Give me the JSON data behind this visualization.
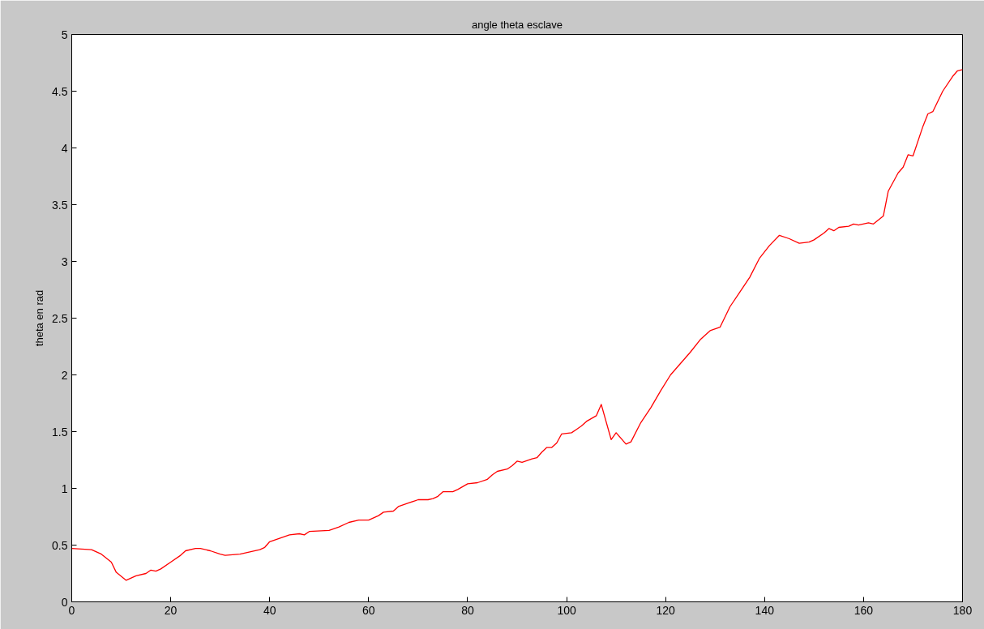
{
  "chart_data": {
    "type": "line",
    "title": "angle theta esclave",
    "ylabel": "theta en rad",
    "x": [
      0,
      4,
      6,
      8,
      9,
      11,
      13,
      15,
      16,
      17,
      18,
      20,
      22,
      23,
      25,
      26,
      28,
      30,
      31,
      34,
      36,
      38,
      39,
      40,
      42,
      44,
      46,
      47,
      48,
      52,
      54,
      56,
      58,
      60,
      62,
      63,
      65,
      66,
      68,
      70,
      72,
      73,
      74,
      75,
      77,
      78,
      80,
      82,
      84,
      85,
      86,
      88,
      89,
      90,
      91,
      93,
      94,
      95,
      96,
      97,
      98,
      99,
      101,
      102,
      103,
      104,
      106,
      107,
      109,
      110,
      112,
      113,
      115,
      117,
      119,
      121,
      123,
      125,
      127,
      129,
      131,
      133,
      135,
      137,
      139,
      141,
      143,
      145,
      147,
      149,
      150,
      152,
      153,
      154,
      155,
      157,
      158,
      159,
      161,
      162,
      164,
      165,
      167,
      168,
      169,
      170,
      172,
      173,
      174,
      176,
      178,
      179,
      180
    ],
    "series": [
      {
        "color": "#ff0000",
        "values": [
          0.47,
          0.46,
          0.42,
          0.35,
          0.26,
          0.19,
          0.23,
          0.25,
          0.28,
          0.27,
          0.29,
          0.35,
          0.41,
          0.45,
          0.47,
          0.47,
          0.45,
          0.42,
          0.41,
          0.42,
          0.44,
          0.46,
          0.48,
          0.53,
          0.56,
          0.59,
          0.6,
          0.59,
          0.62,
          0.63,
          0.66,
          0.7,
          0.72,
          0.72,
          0.76,
          0.79,
          0.8,
          0.84,
          0.87,
          0.9,
          0.9,
          0.91,
          0.93,
          0.97,
          0.97,
          0.99,
          1.04,
          1.05,
          1.08,
          1.12,
          1.15,
          1.17,
          1.2,
          1.24,
          1.23,
          1.26,
          1.27,
          1.32,
          1.36,
          1.36,
          1.4,
          1.48,
          1.49,
          1.52,
          1.55,
          1.59,
          1.64,
          1.74,
          1.43,
          1.49,
          1.39,
          1.41,
          1.58,
          1.71,
          1.86,
          2.0,
          2.1,
          2.2,
          2.31,
          2.39,
          2.42,
          2.6,
          2.73,
          2.86,
          3.03,
          3.14,
          3.23,
          3.2,
          3.16,
          3.17,
          3.19,
          3.25,
          3.29,
          3.27,
          3.3,
          3.31,
          3.33,
          3.32,
          3.34,
          3.33,
          3.4,
          3.62,
          3.78,
          3.83,
          3.94,
          3.93,
          4.19,
          4.3,
          4.32,
          4.5,
          4.63,
          4.68,
          4.69
        ]
      }
    ],
    "xlim": [
      0,
      180
    ],
    "xticks": [
      0,
      20,
      40,
      60,
      80,
      100,
      120,
      140,
      160,
      180
    ],
    "ylim": [
      0,
      5
    ],
    "yticks": [
      0,
      0.5,
      1,
      1.5,
      2,
      2.5,
      3,
      3.5,
      4,
      4.5,
      5
    ],
    "grid": false,
    "marker": "none",
    "line_style": "solid"
  }
}
